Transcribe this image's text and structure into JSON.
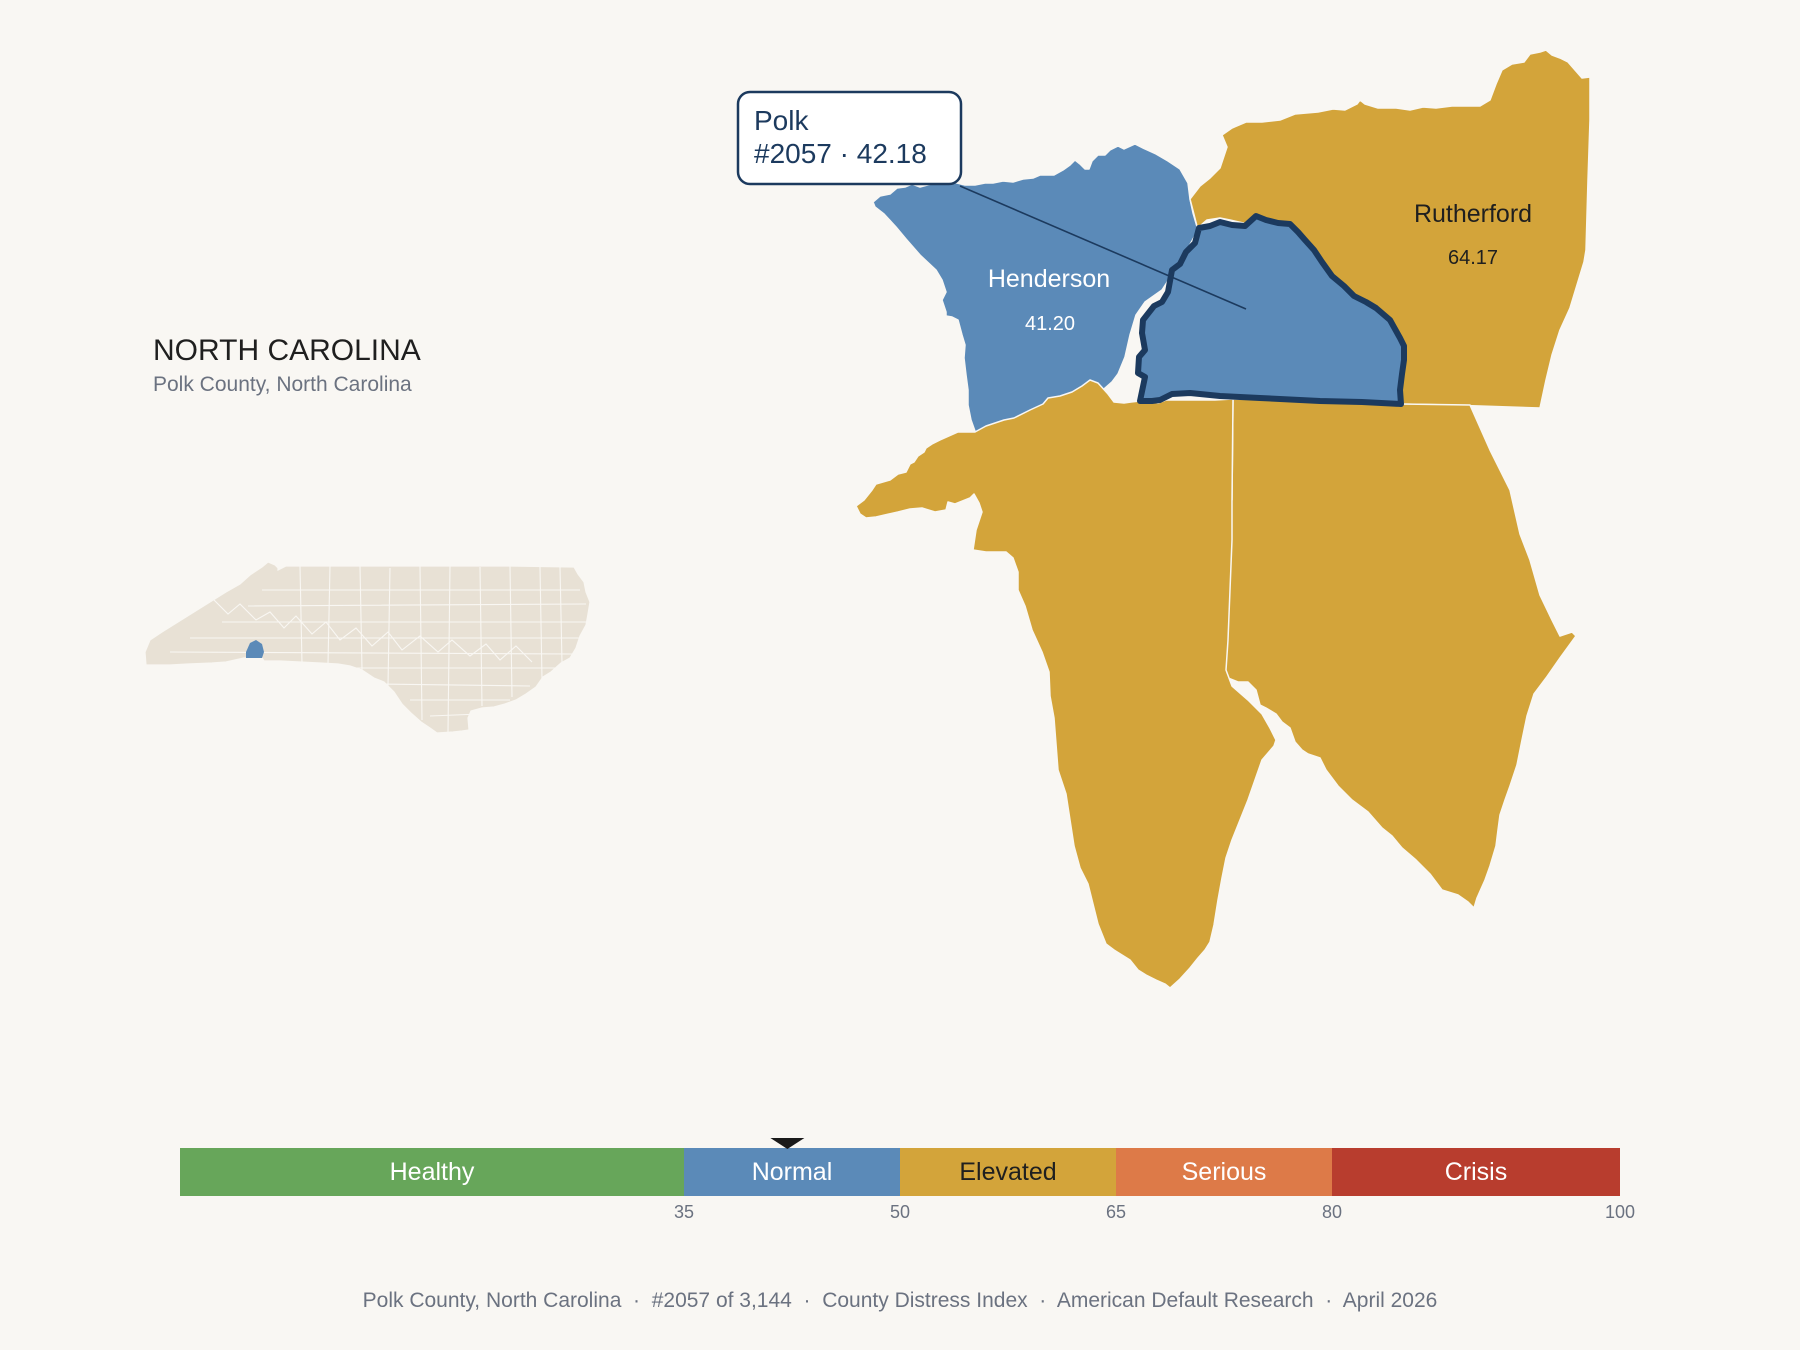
{
  "state": {
    "title": "NORTH CAROLINA",
    "subtitle": "Polk County, North Carolina"
  },
  "focus_county": {
    "name": "Polk",
    "rank_line": "#2057 · 42.18",
    "rank": 2057,
    "score": 42.18,
    "category": "Normal"
  },
  "neighbors": [
    {
      "name": "Henderson",
      "value": "41.20",
      "category": "Normal"
    },
    {
      "name": "Rutherford",
      "value": "64.17",
      "category": "Elevated"
    },
    {
      "name": "",
      "value": "",
      "category": "Elevated"
    },
    {
      "name": "",
      "value": "",
      "category": "Elevated"
    }
  ],
  "legend": {
    "segments": [
      {
        "label": "Healthy",
        "from": 0,
        "to": 35,
        "color": "#67a65a"
      },
      {
        "label": "Normal",
        "from": 35,
        "to": 50,
        "color": "#5b8ab8"
      },
      {
        "label": "Elevated",
        "from": 50,
        "to": 65,
        "color": "#d3a43a"
      },
      {
        "label": "Serious",
        "from": 65,
        "to": 80,
        "color": "#dd7a48"
      },
      {
        "label": "Crisis",
        "from": 80,
        "to": 100,
        "color": "#b83d2e"
      }
    ],
    "ticks": [
      "35",
      "50",
      "65",
      "80",
      "100"
    ],
    "marker_value": 42.18
  },
  "colors": {
    "background": "#f9f7f3",
    "normal": "#5b8ab8",
    "elevated": "#d3a43a",
    "focus_outline": "#1c3a5e",
    "inset_land": "#e8e1d5",
    "inset_highlight": "#5b8ab8"
  },
  "footer": {
    "county": "Polk County, North Carolina",
    "rank": "#2057 of 3,144",
    "index": "County Distress Index",
    "source": "American Default Research",
    "date": "April 2026"
  }
}
